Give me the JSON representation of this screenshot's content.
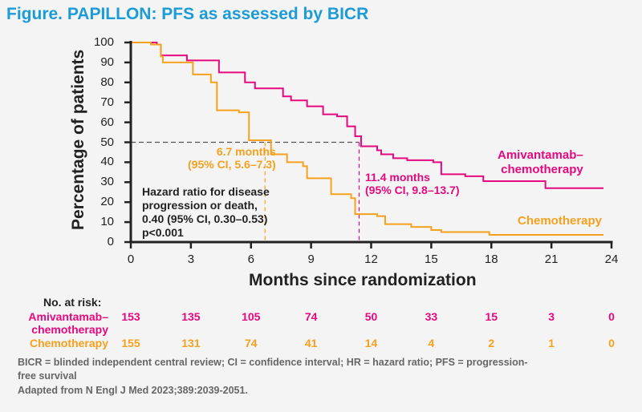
{
  "title": "Figure. PAPILLON: PFS as assessed by BICR",
  "colors": {
    "amivantamab": "#e6087f",
    "chemo": "#f6a11e",
    "title": "#1b9bd7"
  },
  "chart_data": {
    "type": "line",
    "subtype": "kaplan-meier",
    "xlabel": "Months since randomization",
    "ylabel": "Percentage of patients",
    "xlim": [
      0,
      24
    ],
    "ylim": [
      0,
      100
    ],
    "xticks": [
      "0",
      "3",
      "6",
      "9",
      "12",
      "15",
      "18",
      "21",
      "24"
    ],
    "yticks": [
      "0",
      "10",
      "20",
      "30",
      "40",
      "50",
      "60",
      "70",
      "80",
      "90",
      "100"
    ],
    "series": [
      {
        "name": "Amivantamab–chemotherapy",
        "label_line1": "Amivantamab–",
        "label_line2": "chemotherapy",
        "points": [
          [
            0,
            100
          ],
          [
            1.3,
            99
          ],
          [
            1.5,
            93.5
          ],
          [
            2.7,
            93.5
          ],
          [
            2.8,
            91
          ],
          [
            4.1,
            91
          ],
          [
            4.4,
            85
          ],
          [
            5.4,
            85
          ],
          [
            5.7,
            80
          ],
          [
            6.2,
            77
          ],
          [
            7.0,
            77
          ],
          [
            7.6,
            73
          ],
          [
            8.0,
            71
          ],
          [
            8.8,
            68
          ],
          [
            9.6,
            64
          ],
          [
            10.3,
            63
          ],
          [
            10.8,
            58
          ],
          [
            11.2,
            53
          ],
          [
            11.5,
            48
          ],
          [
            12.3,
            46
          ],
          [
            12.5,
            44
          ],
          [
            13.1,
            42
          ],
          [
            13.8,
            41
          ],
          [
            15.1,
            40
          ],
          [
            15.5,
            34
          ],
          [
            16.7,
            33
          ],
          [
            17.6,
            30.5
          ],
          [
            20.6,
            30.5
          ],
          [
            20.7,
            27
          ],
          [
            23.6,
            27
          ]
        ],
        "median": "11.4 months",
        "median_value": 11.4,
        "ci": "(95% CI, 9.8–13.7)"
      },
      {
        "name": "Chemotherapy",
        "label_line1": "Chemotherapy",
        "points": [
          [
            0,
            100
          ],
          [
            1.0,
            99
          ],
          [
            1.5,
            93
          ],
          [
            1.6,
            90
          ],
          [
            2.6,
            90
          ],
          [
            3.1,
            84
          ],
          [
            4.0,
            80
          ],
          [
            4.3,
            66
          ],
          [
            5.4,
            65
          ],
          [
            5.9,
            51
          ],
          [
            6.7,
            51
          ],
          [
            7.0,
            44
          ],
          [
            7.8,
            40
          ],
          [
            8.6,
            38
          ],
          [
            8.8,
            32
          ],
          [
            9.6,
            32
          ],
          [
            10.0,
            24
          ],
          [
            11.0,
            22
          ],
          [
            11.2,
            14
          ],
          [
            12.3,
            13
          ],
          [
            12.7,
            9
          ],
          [
            14.0,
            7.6
          ],
          [
            15.0,
            6
          ],
          [
            15.5,
            5
          ],
          [
            17.9,
            3.6
          ],
          [
            23.6,
            3.6
          ]
        ],
        "median": "6.7 months",
        "median_value": 6.7,
        "ci": "(95% CI, 5.6–7.3)"
      }
    ],
    "annotation": [
      "Hazard ratio for disease",
      "progression or death,",
      "0.40 (95% CI, 0.30–0.53)",
      "p<0.001"
    ]
  },
  "risk_table": {
    "header": "No. at risk:",
    "rows": [
      {
        "label1": "Amivantamab–",
        "label2": "chemotherapy",
        "values": [
          "153",
          "135",
          "105",
          "74",
          "50",
          "33",
          "15",
          "3",
          "0"
        ]
      },
      {
        "label1": "Chemotherapy",
        "values": [
          "155",
          "131",
          "74",
          "41",
          "14",
          "4",
          "2",
          "1",
          "0"
        ]
      }
    ]
  },
  "footnotes": [
    "BICR = blinded independent central review; CI = confidence interval; HR = hazard ratio; PFS = progression-",
    "free survival",
    "Adapted from N Engl J Med 2023;389:2039-2051."
  ]
}
